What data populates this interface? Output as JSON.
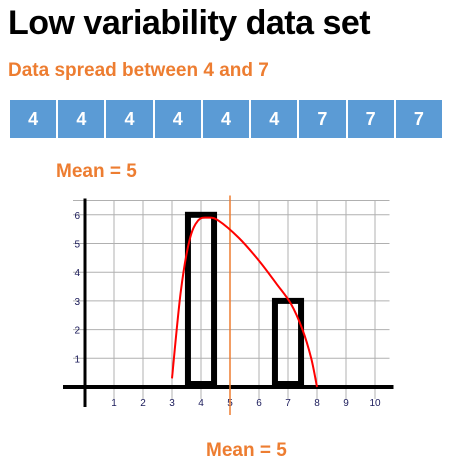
{
  "title": "Low variability data set",
  "subtitle": "Data spread between 4 and 7",
  "data_values": [
    "4",
    "4",
    "4",
    "4",
    "4",
    "4",
    "7",
    "7",
    "7"
  ],
  "mean_top_label": "Mean = 5",
  "mean_bottom_label": "Mean = 5",
  "colors": {
    "accent": "#ed7d31",
    "cell_blue": "#5b9bd5",
    "curve_red": "#ff0000",
    "bar_outline": "#000000",
    "grid": "#b0b0b0"
  },
  "chart_data": {
    "type": "bar",
    "x_ticks": [
      "1",
      "2",
      "3",
      "4",
      "5",
      "6",
      "7",
      "8",
      "9",
      "10"
    ],
    "y_ticks": [
      "1",
      "2",
      "3",
      "4",
      "5",
      "6"
    ],
    "xlim": [
      0,
      10.5
    ],
    "ylim": [
      0,
      6.5
    ],
    "grid": true,
    "bars": [
      {
        "x": 4,
        "value": 6
      },
      {
        "x": 7,
        "value": 3
      }
    ],
    "mean": 5,
    "curve": [
      [
        3,
        0.3
      ],
      [
        3.3,
        3.3
      ],
      [
        3.6,
        5.1
      ],
      [
        3.9,
        5.8
      ],
      [
        4.25,
        5.9
      ],
      [
        4.6,
        5.8
      ],
      [
        5.3,
        5.2
      ],
      [
        6.0,
        4.4
      ],
      [
        6.6,
        3.6
      ],
      [
        7.1,
        2.9
      ],
      [
        7.5,
        2.0
      ],
      [
        7.8,
        1.0
      ],
      [
        8,
        0
      ]
    ]
  }
}
